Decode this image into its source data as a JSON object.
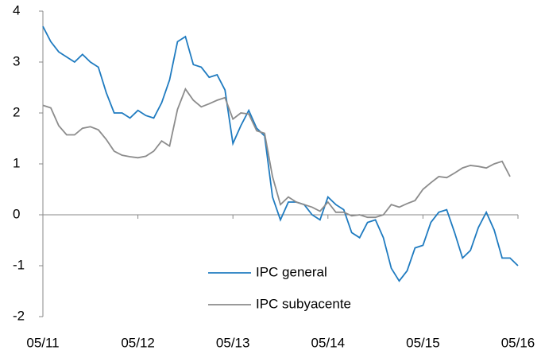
{
  "chart_data": {
    "type": "line",
    "categories": [
      "05/11",
      null,
      null,
      null,
      null,
      null,
      null,
      null,
      null,
      null,
      null,
      null,
      "05/12",
      null,
      null,
      null,
      null,
      null,
      null,
      null,
      null,
      null,
      null,
      null,
      "05/13",
      null,
      null,
      null,
      null,
      null,
      null,
      null,
      null,
      null,
      null,
      null,
      "05/14",
      null,
      null,
      null,
      null,
      null,
      null,
      null,
      null,
      null,
      null,
      null,
      "05/15",
      null,
      null,
      null,
      null,
      null,
      null,
      null,
      null,
      null,
      null,
      null,
      "05/16"
    ],
    "series": [
      {
        "name": "IPC general",
        "color": "#1f7bc0",
        "values": [
          3.7,
          3.4,
          3.2,
          3.1,
          3.0,
          3.15,
          3.0,
          2.9,
          2.4,
          2.0,
          2.0,
          1.9,
          2.05,
          1.95,
          1.9,
          2.2,
          2.65,
          3.4,
          3.5,
          2.95,
          2.9,
          2.7,
          2.75,
          2.45,
          1.4,
          1.75,
          2.05,
          1.7,
          1.55,
          0.35,
          -0.1,
          0.25,
          0.25,
          0.2,
          0.0,
          -0.1,
          0.35,
          0.2,
          0.1,
          -0.35,
          -0.45,
          -0.15,
          -0.1,
          -0.45,
          -1.05,
          -1.3,
          -1.1,
          -0.65,
          -0.6,
          -0.15,
          0.05,
          0.1,
          -0.35,
          -0.85,
          -0.7,
          -0.25,
          0.05,
          -0.3,
          -0.85,
          -0.85,
          -1.0
        ]
      },
      {
        "name": "IPC subyacente",
        "color": "#8c8c8c",
        "values": [
          2.15,
          2.1,
          1.75,
          1.57,
          1.57,
          1.7,
          1.73,
          1.67,
          1.48,
          1.25,
          1.17,
          1.14,
          1.12,
          1.15,
          1.25,
          1.45,
          1.35,
          2.07,
          2.47,
          2.25,
          2.12,
          2.18,
          2.25,
          2.3,
          1.88,
          2.0,
          1.98,
          1.65,
          1.6,
          0.75,
          0.2,
          0.35,
          0.25,
          0.2,
          0.15,
          0.07,
          0.25,
          0.05,
          0.05,
          -0.02,
          0.0,
          -0.05,
          -0.05,
          0.0,
          0.2,
          0.15,
          0.22,
          0.28,
          0.5,
          0.63,
          0.75,
          0.73,
          0.82,
          0.92,
          0.97,
          0.95,
          0.92,
          1.0,
          1.05,
          0.75,
          null
        ]
      }
    ],
    "ylim": [
      -2,
      4
    ],
    "yticks": [
      -2,
      -1,
      0,
      1,
      2,
      3,
      4
    ]
  }
}
